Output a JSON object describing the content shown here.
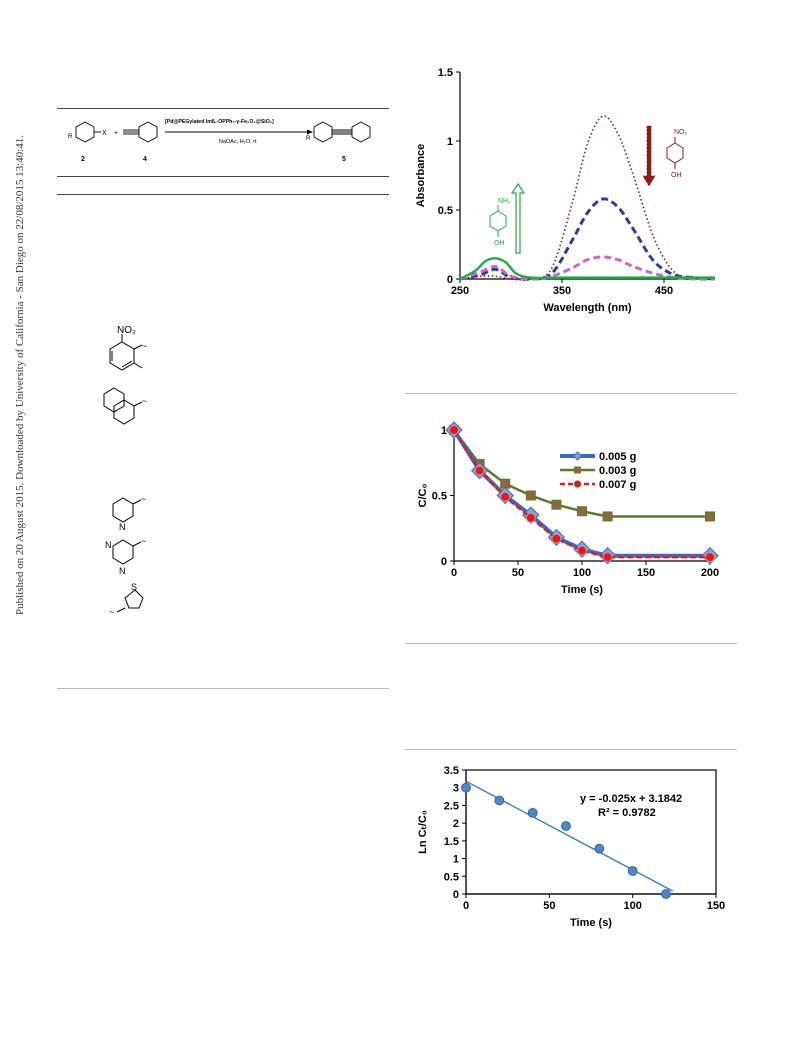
{
  "watermark": "Published on 20 August 2015. Downloaded by University of California - San Diego on 22/08/2015 13:40:41.",
  "scheme": {
    "reagent_top": "[Pd@PEGylated ImIL-OPPh₂-γ-Fe₂O₃@SiO₂]",
    "reagent_bottom": "NaOAc, H₂O, rt",
    "label_2": "2",
    "label_4": "4",
    "label_5": "5",
    "x_label": "X",
    "r_label": "R",
    "plus": "+"
  },
  "structures": {
    "nitro": "NO₂"
  },
  "chart_data": [
    {
      "type": "line",
      "xlabel": "Wavelength (nm)",
      "ylabel": "Absorbance",
      "xlim": [
        250,
        500
      ],
      "ylim": [
        0,
        1.5
      ],
      "x_ticks": [
        "250",
        "350",
        "450"
      ],
      "y_ticks": [
        "0",
        "0.5",
        "1",
        "1.5"
      ],
      "grid": false,
      "annotations": [
        "NH₂",
        "OH",
        "NO₂",
        "OH"
      ],
      "series": [
        {
          "style": "dotted",
          "color": "#8b1a1a",
          "x": [
            250,
            270,
            285,
            300,
            320,
            340,
            360,
            375,
            390,
            405,
            420,
            440,
            460,
            480,
            500
          ],
          "y": [
            0,
            0.02,
            0.02,
            0,
            0,
            0.08,
            0.55,
            0.98,
            1.18,
            1.05,
            0.75,
            0.3,
            0.05,
            0.01,
            0
          ]
        },
        {
          "style": "dashed",
          "color": "#2d3d99",
          "x": [
            250,
            270,
            285,
            300,
            320,
            340,
            360,
            375,
            390,
            405,
            420,
            440,
            460,
            480,
            500
          ],
          "y": [
            0,
            0.03,
            0.07,
            0.01,
            0,
            0.04,
            0.28,
            0.48,
            0.58,
            0.52,
            0.36,
            0.13,
            0.03,
            0.01,
            0
          ]
        },
        {
          "style": "dashed",
          "color": "#c56ac5",
          "x": [
            250,
            270,
            285,
            300,
            320,
            340,
            360,
            375,
            390,
            405,
            420,
            440,
            460,
            480,
            500
          ],
          "y": [
            0,
            0.05,
            0.09,
            0.02,
            0,
            0.02,
            0.08,
            0.14,
            0.16,
            0.14,
            0.09,
            0.04,
            0.01,
            0,
            0
          ]
        },
        {
          "style": "solid",
          "color": "#22aa44",
          "x": [
            250,
            265,
            275,
            285,
            295,
            305,
            320,
            350,
            400,
            450,
            500
          ],
          "y": [
            0,
            0.06,
            0.13,
            0.15,
            0.12,
            0.04,
            0.01,
            0.01,
            0.01,
            0.01,
            0.01
          ]
        }
      ]
    },
    {
      "type": "line",
      "xlabel": "Time (s)",
      "ylabel": "C/C₀",
      "xlim": [
        0,
        200
      ],
      "ylim": [
        0,
        1
      ],
      "x_ticks": [
        "0",
        "50",
        "100",
        "150",
        "200"
      ],
      "y_ticks": [
        "0",
        "0.5",
        "1"
      ],
      "grid": false,
      "legend_position": "top-right",
      "series": [
        {
          "name": "0.005 g",
          "color": "#3a6bc4",
          "marker": "diamond",
          "x": [
            0,
            20,
            40,
            60,
            80,
            100,
            120,
            200
          ],
          "y": [
            1,
            0.69,
            0.5,
            0.35,
            0.18,
            0.09,
            0.04,
            0.04
          ]
        },
        {
          "name": "0.003 g",
          "color": "#5a7a2a",
          "marker": "square",
          "x": [
            0,
            20,
            40,
            60,
            80,
            100,
            120,
            200
          ],
          "y": [
            1,
            0.74,
            0.59,
            0.5,
            0.43,
            0.38,
            0.34,
            0.34
          ]
        },
        {
          "name": "0.007 g",
          "color": "#d62020",
          "marker": "circle",
          "x": [
            0,
            20,
            40,
            60,
            80,
            100,
            120,
            200
          ],
          "y": [
            1,
            0.69,
            0.49,
            0.33,
            0.17,
            0.08,
            0.03,
            0.03
          ]
        }
      ]
    },
    {
      "type": "scatter",
      "xlabel": "Time (s)",
      "ylabel": "Ln Cₜ/C₀",
      "xlim": [
        0,
        150
      ],
      "ylim": [
        0,
        3.5
      ],
      "x_ticks": [
        "0",
        "50",
        "100",
        "150"
      ],
      "y_ticks": [
        "0",
        "0.5",
        "1",
        "1.5",
        "2",
        "2.5",
        "3",
        "3.5"
      ],
      "grid": false,
      "equation": "y = -0.025x + 3.1842",
      "r_squared": "R² = 0.9782",
      "fit": {
        "slope": -0.025,
        "intercept": 3.1842
      },
      "x": [
        0,
        20,
        40,
        60,
        80,
        100,
        120
      ],
      "y": [
        3.0,
        2.64,
        2.29,
        1.92,
        1.28,
        0.65,
        0.0
      ]
    }
  ]
}
